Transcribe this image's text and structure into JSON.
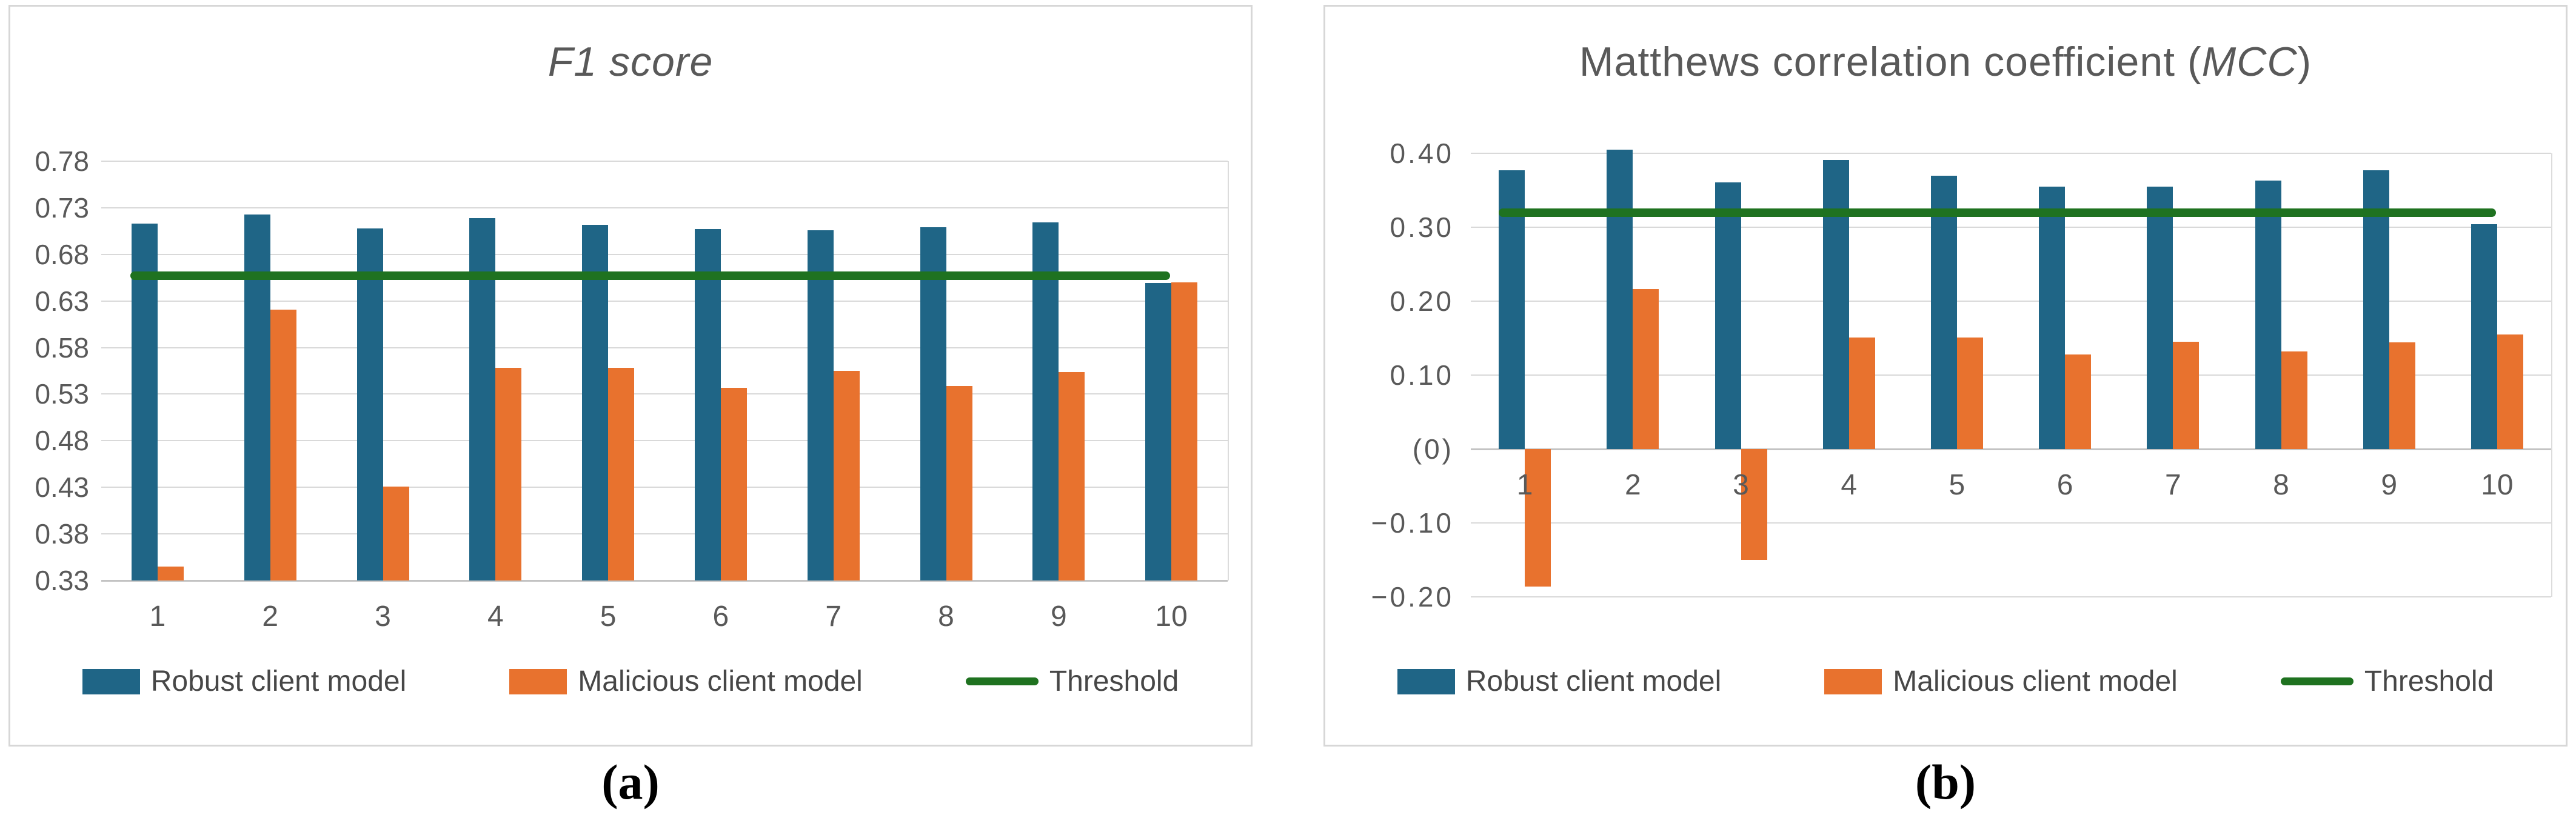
{
  "figure": {
    "caption_a": "(a)",
    "caption_b": "(b)"
  },
  "colors": {
    "robust_blue": "#1F6586",
    "malicious_orange": "#E8722E",
    "threshold_green": "#1F7220",
    "text_gray": "#595959"
  },
  "chart_data": [
    {
      "type": "bar",
      "title_parts": {
        "prefix": "",
        "italic": "F1 score",
        "suffix": ""
      },
      "xlabel": "",
      "ylabel": "",
      "ylim": [
        0.33,
        0.78
      ],
      "baseline": 0.33,
      "grid": true,
      "legend_position": "bottom",
      "categories": [
        "1",
        "2",
        "3",
        "4",
        "5",
        "6",
        "7",
        "8",
        "9",
        "10"
      ],
      "yticks": [
        {
          "label": "0.78",
          "value": 0.78
        },
        {
          "label": "0.73",
          "value": 0.73
        },
        {
          "label": "0.68",
          "value": 0.68
        },
        {
          "label": "0.63",
          "value": 0.63
        },
        {
          "label": "0.58",
          "value": 0.58
        },
        {
          "label": "0.53",
          "value": 0.53
        },
        {
          "label": "0.48",
          "value": 0.48
        },
        {
          "label": "0.43",
          "value": 0.43
        },
        {
          "label": "0.38",
          "value": 0.38
        },
        {
          "label": "0.33",
          "value": 0.33
        }
      ],
      "series": [
        {
          "name": "Robust client model",
          "color": "#1F6586",
          "values": [
            0.713,
            0.723,
            0.708,
            0.719,
            0.712,
            0.707,
            0.706,
            0.709,
            0.714,
            0.649
          ]
        },
        {
          "name": "Malicious client model",
          "color": "#E8722E",
          "values": [
            0.345,
            0.621,
            0.431,
            0.558,
            0.558,
            0.537,
            0.555,
            0.539,
            0.554,
            0.65
          ]
        }
      ],
      "threshold": {
        "label": "Threshold",
        "value": 0.657,
        "color": "#1F7220"
      }
    },
    {
      "type": "bar",
      "title_parts": {
        "prefix": "Matthews correlation coefficient (",
        "italic": "MCC",
        "suffix": ")"
      },
      "xlabel": "",
      "ylabel": "",
      "ylim": [
        -0.2,
        0.4
      ],
      "baseline": 0,
      "grid": true,
      "legend_position": "bottom",
      "categories": [
        "1",
        "2",
        "3",
        "4",
        "5",
        "6",
        "7",
        "8",
        "9",
        "10"
      ],
      "yticks": [
        {
          "label": "0.40",
          "value": 0.4
        },
        {
          "label": "0.30",
          "value": 0.3
        },
        {
          "label": "0.20",
          "value": 0.2
        },
        {
          "label": "0.10",
          "value": 0.1
        },
        {
          "label": "(0)",
          "value": 0
        },
        {
          "label": "−0.10",
          "value": -0.1
        },
        {
          "label": "−0.20",
          "value": -0.2
        }
      ],
      "series": [
        {
          "name": "Robust client model",
          "color": "#1F6586",
          "values": [
            0.377,
            0.405,
            0.361,
            0.391,
            0.37,
            0.355,
            0.355,
            0.363,
            0.377,
            0.304
          ]
        },
        {
          "name": "Malicious client model",
          "color": "#E8722E",
          "values": [
            -0.186,
            0.216,
            -0.15,
            0.151,
            0.151,
            0.128,
            0.145,
            0.132,
            0.144,
            0.155
          ]
        }
      ],
      "threshold": {
        "label": "Threshold",
        "value": 0.32,
        "color": "#1F7220"
      }
    }
  ]
}
